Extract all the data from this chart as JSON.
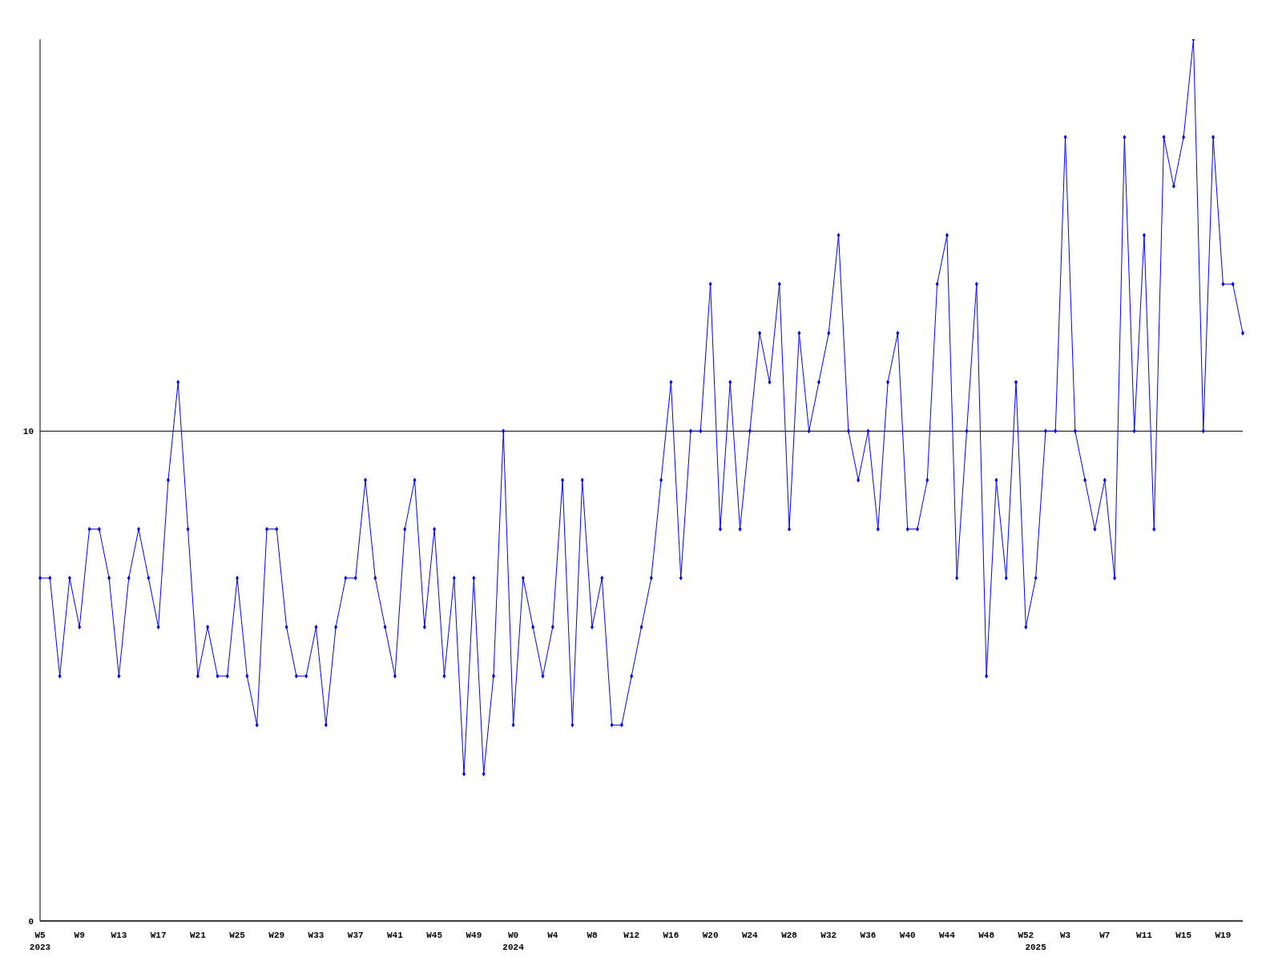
{
  "chart_data": {
    "type": "line",
    "categories": [
      "W5\n2023",
      null,
      null,
      null,
      "W9",
      null,
      null,
      null,
      "W13",
      null,
      null,
      null,
      "W17",
      null,
      null,
      null,
      "W21",
      null,
      null,
      null,
      "W25",
      null,
      null,
      null,
      "W29",
      null,
      null,
      null,
      "W33",
      null,
      null,
      null,
      "W37",
      null,
      null,
      null,
      "W41",
      null,
      null,
      null,
      "W45",
      null,
      null,
      null,
      "W49",
      null,
      null,
      null,
      "W0\n2024",
      null,
      null,
      null,
      "W4",
      null,
      null,
      null,
      "W8",
      null,
      null,
      null,
      "W12",
      null,
      null,
      null,
      "W16",
      null,
      null,
      null,
      "W20",
      null,
      null,
      null,
      "W24",
      null,
      null,
      null,
      "W28",
      null,
      null,
      null,
      "W32",
      null,
      null,
      null,
      "W36",
      null,
      null,
      null,
      "W40",
      null,
      null,
      null,
      "W44",
      null,
      null,
      null,
      "W48",
      null,
      null,
      null,
      "W52",
      "\n2025",
      null,
      null,
      "W3",
      null,
      null,
      null,
      "W7",
      null,
      null,
      null,
      "W11",
      null,
      null,
      null,
      "W15",
      null,
      null,
      null,
      "W19",
      null,
      null
    ],
    "series": [
      {
        "color": "#0000ff",
        "values": [
          7,
          7,
          5,
          7,
          6,
          8,
          8,
          7,
          5,
          7,
          8,
          7,
          6,
          9,
          11,
          8,
          5,
          6,
          5,
          5,
          7,
          5,
          4,
          8,
          8,
          6,
          5,
          5,
          6,
          4,
          6,
          7,
          7,
          9,
          7,
          6,
          5,
          8,
          9,
          6,
          8,
          5,
          7,
          3,
          7,
          3,
          5,
          10,
          4,
          7,
          6,
          5,
          6,
          9,
          4,
          9,
          6,
          7,
          4,
          4,
          5,
          6,
          7,
          9,
          11,
          7,
          10,
          10,
          13,
          8,
          11,
          8,
          10,
          12,
          11,
          13,
          8,
          12,
          10,
          11,
          12,
          14,
          10,
          9,
          10,
          8,
          11,
          12,
          8,
          8,
          9,
          13,
          14,
          7,
          10,
          13,
          5,
          9,
          7,
          11,
          6,
          7,
          10,
          10,
          16,
          10,
          9,
          8,
          9,
          7,
          16,
          10,
          14,
          8,
          16,
          15,
          16,
          18,
          10,
          16,
          13,
          13,
          12
        ]
      }
    ],
    "ylim": [
      0,
      18
    ],
    "yticks": [
      0,
      10
    ],
    "grid": "y",
    "marker": "diamond",
    "line_style": "solid"
  }
}
